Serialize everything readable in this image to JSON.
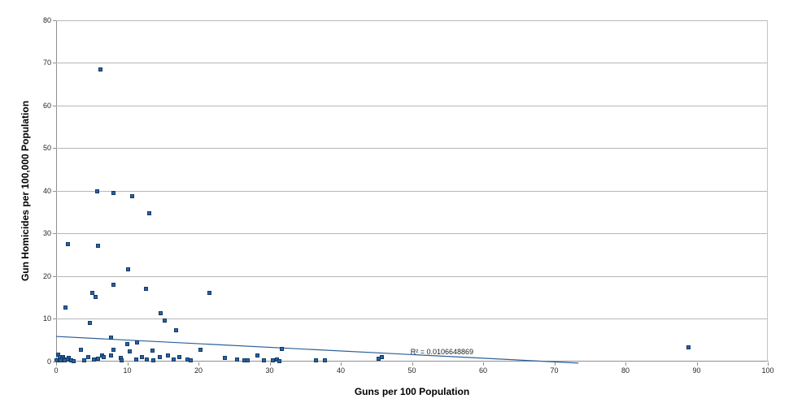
{
  "chart_data": {
    "type": "scatter",
    "title": "",
    "xlabel": "Guns per 100 Population",
    "ylabel": "Gun Homicides per 100,000 Population",
    "xlim": [
      0,
      100
    ],
    "ylim": [
      0,
      80
    ],
    "x_ticks": [
      0,
      10,
      20,
      30,
      40,
      50,
      60,
      70,
      80,
      90,
      100
    ],
    "y_ticks": [
      0,
      10,
      20,
      30,
      40,
      50,
      60,
      70,
      80
    ],
    "grid": "horizontal-only",
    "legend": "none",
    "points": [
      [
        6.2,
        68.4
      ],
      [
        5.8,
        39.9
      ],
      [
        8.1,
        39.4
      ],
      [
        10.7,
        38.8
      ],
      [
        13.1,
        34.8
      ],
      [
        1.6,
        27.4
      ],
      [
        5.9,
        27.0
      ],
      [
        10.1,
        21.5
      ],
      [
        8.0,
        18.0
      ],
      [
        12.6,
        16.9
      ],
      [
        21.5,
        16.1
      ],
      [
        5.1,
        16.0
      ],
      [
        5.5,
        15.1
      ],
      [
        1.3,
        12.5
      ],
      [
        14.7,
        11.3
      ],
      [
        15.2,
        9.6
      ],
      [
        4.7,
        8.9
      ],
      [
        16.8,
        7.2
      ],
      [
        7.7,
        5.5
      ],
      [
        11.4,
        4.4
      ],
      [
        10.0,
        4.1
      ],
      [
        88.8,
        3.2
      ],
      [
        31.7,
        2.9
      ],
      [
        20.3,
        2.7
      ],
      [
        3.5,
        2.6
      ],
      [
        8.1,
        2.6
      ],
      [
        13.5,
        2.5
      ],
      [
        10.3,
        2.2
      ],
      [
        0.3,
        1.6
      ],
      [
        6.4,
        1.3
      ],
      [
        7.7,
        1.3
      ],
      [
        15.7,
        1.3
      ],
      [
        28.3,
        1.3
      ],
      [
        1.0,
        1.0
      ],
      [
        4.5,
        0.95
      ],
      [
        6.7,
        0.95
      ],
      [
        12.1,
        0.95
      ],
      [
        14.6,
        0.95
      ],
      [
        17.3,
        0.95
      ],
      [
        45.8,
        0.95
      ],
      [
        0.5,
        0.9
      ],
      [
        9.1,
        0.8
      ],
      [
        23.7,
        0.75
      ],
      [
        1.8,
        0.7
      ],
      [
        0.9,
        0.6
      ],
      [
        5.9,
        0.6
      ],
      [
        45.3,
        0.5
      ],
      [
        11.2,
        0.4
      ],
      [
        12.7,
        0.4
      ],
      [
        16.5,
        0.4
      ],
      [
        1.5,
        0.3
      ],
      [
        5.3,
        0.3
      ],
      [
        18.4,
        0.3
      ],
      [
        25.4,
        0.3
      ],
      [
        31.0,
        0.3
      ],
      [
        0.6,
        0.25
      ],
      [
        9.2,
        0.2
      ],
      [
        13.6,
        0.2
      ],
      [
        26.4,
        0.15
      ],
      [
        26.9,
        0.15
      ],
      [
        30.4,
        0.15
      ],
      [
        36.5,
        0.15
      ],
      [
        37.8,
        0.15
      ],
      [
        1.2,
        0.15
      ],
      [
        0.1,
        0.1
      ],
      [
        2.1,
        0.1
      ],
      [
        18.9,
        0.1
      ],
      [
        29.2,
        0.1
      ],
      [
        3.9,
        0.1
      ],
      [
        31.4,
        0.05
      ],
      [
        2.5,
        0.05
      ]
    ],
    "trendline": {
      "x1": 0,
      "y1": 5.8,
      "x2": 73.4,
      "y2": -0.45,
      "r_squared_label": "R² = 0.0106648869",
      "label_pos": {
        "x": 49.8,
        "y": 3.2
      }
    },
    "colors": {
      "marker_fill": "#2a62a5",
      "marker_border": "#133a61",
      "trendline": "#2d5f99",
      "gridline": "#b8b8b8",
      "axis_line": "#8f8f8f",
      "tick_text": "#262626",
      "axis_title_text": "#000000",
      "background": "#ffffff"
    }
  }
}
